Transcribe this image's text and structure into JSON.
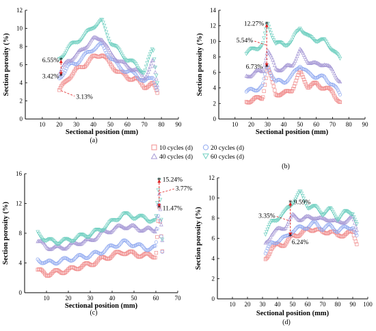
{
  "legend": [
    {
      "label": "10 cycles (d)",
      "color": "#f08c8c",
      "marker": "square"
    },
    {
      "label": "20 cycles (d)",
      "color": "#8fa8f0",
      "marker": "circle"
    },
    {
      "label": "40 cycles (d)",
      "color": "#a79ad6",
      "marker": "triangle"
    },
    {
      "label": "60 cycles (d)",
      "color": "#6fcfc0",
      "marker": "triangle-down"
    }
  ],
  "chart_data": [
    {
      "type": "scatter",
      "caption": "(a)",
      "xlabel": "Sectional position (mm)",
      "ylabel": "Section porosity (%)",
      "xlim": [
        0,
        90
      ],
      "ylim": [
        0,
        12
      ],
      "xticks": [
        "10",
        "20",
        "30",
        "40",
        "50",
        "60",
        "70",
        "80",
        "90"
      ],
      "yticks": [
        "0",
        "2",
        "4",
        "6",
        "8",
        "10",
        "12"
      ],
      "x": [
        20,
        25,
        30,
        35,
        40,
        45,
        50,
        55,
        60,
        65,
        70,
        75,
        78
      ],
      "series": [
        {
          "name": "10 cycles (d)",
          "values": [
            3.1,
            4.5,
            5.4,
            6.0,
            6.8,
            7.2,
            6.0,
            5.2,
            4.6,
            4.4,
            3.6,
            3.8,
            2.8
          ]
        },
        {
          "name": "20 cycles (d)",
          "values": [
            4.5,
            5.8,
            6.2,
            7.0,
            7.8,
            8.2,
            6.8,
            5.8,
            5.2,
            5.0,
            4.0,
            4.8,
            3.0
          ]
        },
        {
          "name": "40 cycles (d)",
          "values": [
            5.0,
            6.5,
            7.0,
            8.0,
            8.8,
            9.0,
            7.2,
            6.5,
            5.8,
            5.5,
            4.5,
            6.5,
            3.2
          ]
        },
        {
          "name": "60 cycles (d)",
          "values": [
            6.5,
            7.8,
            8.5,
            9.2,
            10.2,
            10.8,
            8.5,
            7.5,
            6.5,
            6.0,
            5.0,
            8.0,
            3.5
          ]
        }
      ],
      "annotations": [
        {
          "text": "6.55%",
          "x": 21,
          "y": 6.55
        },
        {
          "text": "3.13%",
          "x": 21,
          "y": 3.13
        },
        {
          "text": "3.42%",
          "x": 21,
          "y": 4.8
        }
      ]
    },
    {
      "type": "scatter",
      "caption": "(b)",
      "xlabel": "Sectional position (mm)",
      "ylabel": "Section porosity (%)",
      "xlim": [
        0,
        90
      ],
      "ylim": [
        0,
        14
      ],
      "xticks": [
        "10",
        "20",
        "30",
        "40",
        "50",
        "60",
        "70",
        "80",
        "90"
      ],
      "yticks": [
        "0",
        "2",
        "4",
        "6",
        "8",
        "10",
        "12",
        "14"
      ],
      "x": [
        17,
        22,
        27,
        30,
        35,
        40,
        45,
        50,
        55,
        60,
        65,
        70,
        75
      ],
      "series": [
        {
          "name": "10 cycles (d)",
          "values": [
            2.3,
            2.5,
            2.8,
            6.7,
            3.3,
            3.2,
            3.8,
            6.0,
            4.2,
            4.5,
            4.0,
            3.5,
            2.0
          ]
        },
        {
          "name": "20 cycles (d)",
          "values": [
            3.5,
            3.8,
            4.2,
            7.0,
            4.8,
            4.8,
            5.5,
            7.0,
            5.8,
            5.5,
            5.3,
            4.5,
            3.0
          ]
        },
        {
          "name": "40 cycles (d)",
          "values": [
            5.5,
            6.0,
            6.2,
            9.0,
            6.5,
            6.5,
            7.0,
            8.8,
            7.5,
            7.0,
            7.2,
            6.2,
            4.8
          ]
        },
        {
          "name": "60 cycles (d)",
          "values": [
            8.5,
            9.0,
            9.5,
            12.2,
            9.8,
            9.5,
            10.0,
            11.8,
            10.5,
            10.2,
            10.0,
            9.0,
            7.5
          ]
        }
      ],
      "annotations": [
        {
          "text": "12.27%",
          "x": 29.5,
          "y": 12.27
        },
        {
          "text": "5.54%",
          "x": 29.5,
          "y": 9.5
        },
        {
          "text": "6.73%",
          "x": 29.5,
          "y": 6.73
        }
      ]
    },
    {
      "type": "scatter",
      "caption": "(c)",
      "xlabel": "Sectional position (mm)",
      "ylabel": "Section porosity (%)",
      "xlim": [
        0,
        70
      ],
      "ylim": [
        0,
        16
      ],
      "xticks": [
        "10",
        "20",
        "30",
        "40",
        "50",
        "60",
        "70"
      ],
      "yticks": [
        "0",
        "4",
        "8",
        "12",
        "16"
      ],
      "x": [
        6,
        10,
        15,
        20,
        25,
        30,
        35,
        40,
        45,
        50,
        55,
        60,
        61.5,
        63
      ],
      "series": [
        {
          "name": "10 cycles (d)",
          "values": [
            3.0,
            2.5,
            2.8,
            3.0,
            3.5,
            3.8,
            4.5,
            5.0,
            5.5,
            5.2,
            5.0,
            5.0,
            11.5,
            5.0
          ]
        },
        {
          "name": "20 cycles (d)",
          "values": [
            4.5,
            4.0,
            4.2,
            4.5,
            4.8,
            5.0,
            5.5,
            6.2,
            6.8,
            6.5,
            6.0,
            6.0,
            12.0,
            5.5
          ]
        },
        {
          "name": "40 cycles (d)",
          "values": [
            7.0,
            6.2,
            6.0,
            6.3,
            6.8,
            7.0,
            8.0,
            8.5,
            9.0,
            8.8,
            8.5,
            8.5,
            13.5,
            6.5
          ]
        },
        {
          "name": "60 cycles (d)",
          "values": [
            8.0,
            7.0,
            6.8,
            7.0,
            7.5,
            7.8,
            8.5,
            9.5,
            10.5,
            10.2,
            10.0,
            9.5,
            15.2,
            7.0
          ]
        }
      ],
      "annotations": [
        {
          "text": "15.24%",
          "x": 61.5,
          "y": 15.24
        },
        {
          "text": "3.77%",
          "x": 61.5,
          "y": 13.4
        },
        {
          "text": "11.47%",
          "x": 61.5,
          "y": 11.47
        }
      ]
    },
    {
      "type": "scatter",
      "caption": "(d)",
      "xlabel": "Sectional position (mm)",
      "ylabel": "Section porosity (%)",
      "xlim": [
        0,
        100
      ],
      "ylim": [
        0,
        12
      ],
      "xticks": [
        "10",
        "20",
        "30",
        "40",
        "50",
        "60",
        "70",
        "80",
        "90",
        "100"
      ],
      "yticks": [
        "0",
        "2",
        "4",
        "6",
        "8",
        "10",
        "12"
      ],
      "x": [
        32,
        36,
        40,
        45,
        50,
        55,
        60,
        65,
        70,
        75,
        80,
        85,
        90,
        93
      ],
      "series": [
        {
          "name": "10 cycles (d)",
          "values": [
            4.0,
            5.0,
            5.3,
            5.5,
            6.2,
            6.5,
            6.8,
            7.0,
            6.5,
            6.8,
            6.2,
            6.5,
            6.5,
            5.5
          ]
        },
        {
          "name": "20 cycles (d)",
          "values": [
            4.5,
            5.5,
            5.8,
            6.0,
            6.8,
            7.0,
            7.2,
            7.5,
            7.0,
            7.2,
            6.8,
            7.0,
            7.2,
            6.0
          ]
        },
        {
          "name": "40 cycles (d)",
          "values": [
            5.5,
            6.5,
            6.8,
            7.2,
            8.2,
            8.0,
            8.0,
            8.2,
            7.8,
            8.0,
            7.5,
            7.8,
            8.0,
            6.8
          ]
        },
        {
          "name": "60 cycles (d)",
          "values": [
            6.5,
            7.5,
            8.0,
            8.5,
            9.6,
            10.5,
            9.2,
            9.0,
            8.5,
            8.8,
            8.0,
            8.5,
            8.6,
            7.2
          ]
        }
      ],
      "annotations": [
        {
          "text": "9.59%",
          "x": 48.5,
          "y": 9.59
        },
        {
          "text": "3.35%",
          "x": 48.5,
          "y": 7.9
        },
        {
          "text": "6.24%",
          "x": 48.5,
          "y": 6.24
        }
      ]
    }
  ]
}
